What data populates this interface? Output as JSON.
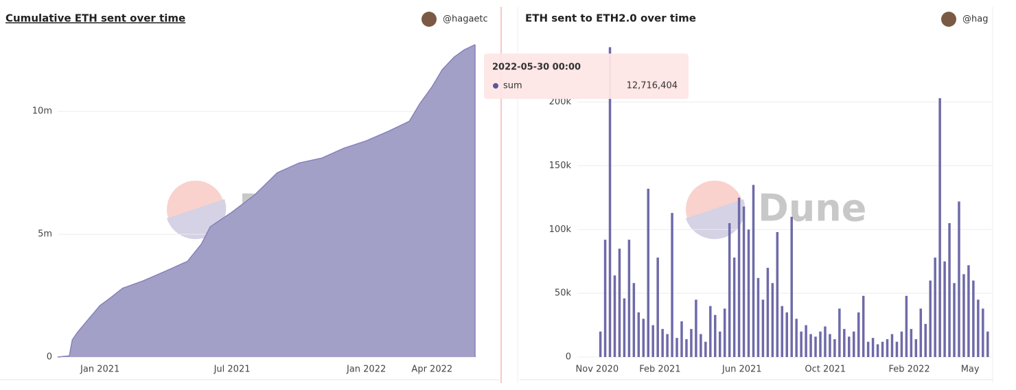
{
  "chart_data": [
    {
      "type": "area",
      "title": "Cumulative ETH sent over time",
      "author": "@hagaetc",
      "watermark": "Dune",
      "x": [
        "2020-11-04",
        "2020-11-20",
        "2020-11-24",
        "2020-12-01",
        "2020-12-15",
        "2021-01-01",
        "2021-01-15",
        "2021-02-01",
        "2021-03-01",
        "2021-04-01",
        "2021-05-01",
        "2021-05-20",
        "2021-06-01",
        "2021-07-01",
        "2021-08-01",
        "2021-09-01",
        "2021-10-01",
        "2021-11-01",
        "2021-12-01",
        "2022-01-01",
        "2022-02-01",
        "2022-03-01",
        "2022-03-15",
        "2022-04-01",
        "2022-04-15",
        "2022-05-01",
        "2022-05-15",
        "2022-05-30"
      ],
      "series": [
        {
          "name": "sum",
          "color": "#a3a0c8",
          "values": [
            0,
            50000,
            700000,
            1000000,
            1500000,
            2100000,
            2400000,
            2800000,
            3100000,
            3500000,
            3900000,
            4600000,
            5300000,
            5900000,
            6600000,
            7500000,
            7900000,
            8100000,
            8500000,
            8800000,
            9200000,
            9600000,
            10300000,
            11000000,
            11700000,
            12200000,
            12500000,
            12716404
          ]
        }
      ],
      "xlim": [
        "2020-11-04",
        "2022-05-30"
      ],
      "xticks": [
        {
          "value": "2021-01-01",
          "label": "Jan 2021"
        },
        {
          "value": "2021-07-01",
          "label": "Jul 2021"
        },
        {
          "value": "2022-01-01",
          "label": "Jan 2022"
        },
        {
          "value": "2022-04-01",
          "label": "Apr 2022"
        }
      ],
      "ylim": [
        0,
        12716404
      ],
      "yticks": [
        0,
        {
          "value": 5000000,
          "label": "5m"
        },
        {
          "value": 10000000,
          "label": "10m"
        }
      ],
      "grid": true,
      "tooltip": {
        "date": "2022-05-30 00:00",
        "series": "sum",
        "label": "12,716,404"
      }
    },
    {
      "type": "bar",
      "title": "ETH sent to ETH2.0 over time",
      "author": "@hag",
      "watermark": "Dune",
      "x": [
        "2020-11-04",
        "2020-11-11",
        "2020-11-18",
        "2020-11-25",
        "2020-12-02",
        "2020-12-09",
        "2020-12-16",
        "2020-12-23",
        "2020-12-30",
        "2021-01-06",
        "2021-01-13",
        "2021-01-20",
        "2021-01-27",
        "2021-02-03",
        "2021-02-10",
        "2021-02-17",
        "2021-02-24",
        "2021-03-03",
        "2021-03-10",
        "2021-03-17",
        "2021-03-24",
        "2021-03-31",
        "2021-04-07",
        "2021-04-14",
        "2021-04-21",
        "2021-04-28",
        "2021-05-05",
        "2021-05-12",
        "2021-05-19",
        "2021-05-26",
        "2021-06-02",
        "2021-06-09",
        "2021-06-16",
        "2021-06-23",
        "2021-06-30",
        "2021-07-07",
        "2021-07-14",
        "2021-07-21",
        "2021-07-28",
        "2021-08-04",
        "2021-08-11",
        "2021-08-18",
        "2021-08-25",
        "2021-09-01",
        "2021-09-08",
        "2021-09-15",
        "2021-09-22",
        "2021-09-29",
        "2021-10-06",
        "2021-10-13",
        "2021-10-20",
        "2021-10-27",
        "2021-11-03",
        "2021-11-10",
        "2021-11-17",
        "2021-11-24",
        "2021-12-01",
        "2021-12-08",
        "2021-12-15",
        "2021-12-22",
        "2021-12-29",
        "2022-01-05",
        "2022-01-12",
        "2022-01-19",
        "2022-01-26",
        "2022-02-02",
        "2022-02-09",
        "2022-02-16",
        "2022-02-23",
        "2022-03-02",
        "2022-03-09",
        "2022-03-16",
        "2022-03-23",
        "2022-03-30",
        "2022-04-06",
        "2022-04-13",
        "2022-04-20",
        "2022-04-27",
        "2022-05-04",
        "2022-05-11",
        "2022-05-18",
        "2022-05-25"
      ],
      "series": [
        {
          "name": "sum",
          "color": "#6e6aa8",
          "values": [
            20000,
            92000,
            243000,
            64000,
            85000,
            46000,
            92000,
            58000,
            35000,
            30000,
            132000,
            25000,
            78000,
            22000,
            18000,
            113000,
            15000,
            28000,
            14000,
            22000,
            45000,
            18000,
            12000,
            40000,
            33000,
            20000,
            38000,
            105000,
            78000,
            125000,
            118000,
            100000,
            135000,
            62000,
            45000,
            70000,
            58000,
            98000,
            40000,
            35000,
            110000,
            30000,
            20000,
            25000,
            18000,
            16000,
            20000,
            24000,
            18000,
            14000,
            38000,
            22000,
            16000,
            20000,
            35000,
            48000,
            12000,
            15000,
            10000,
            12000,
            14000,
            18000,
            12000,
            20000,
            48000,
            22000,
            14000,
            38000,
            26000,
            60000,
            78000,
            203000,
            75000,
            105000,
            58000,
            122000,
            65000,
            72000,
            60000,
            45000,
            38000,
            20000
          ]
        }
      ],
      "xlim": [
        "2020-10-03",
        "2022-05-31"
      ],
      "xticks": [
        {
          "value": "2020-11-01",
          "label": "Nov 2020"
        },
        {
          "value": "2021-02-01",
          "label": "Feb 2021"
        },
        {
          "value": "2021-06-01",
          "label": "Jun 2021"
        },
        {
          "value": "2021-10-01",
          "label": "Oct 2021"
        },
        {
          "value": "2022-02-01",
          "label": "Feb 2022"
        },
        {
          "value": "2022-05-01",
          "label": "May"
        }
      ],
      "ylim": [
        0,
        245000
      ],
      "yticks": [
        0,
        {
          "value": 50000,
          "label": "50k"
        },
        {
          "value": 100000,
          "label": "100k"
        },
        {
          "value": 150000,
          "label": "150k"
        },
        {
          "value": 200000,
          "label": "200k"
        }
      ],
      "grid": true
    }
  ]
}
